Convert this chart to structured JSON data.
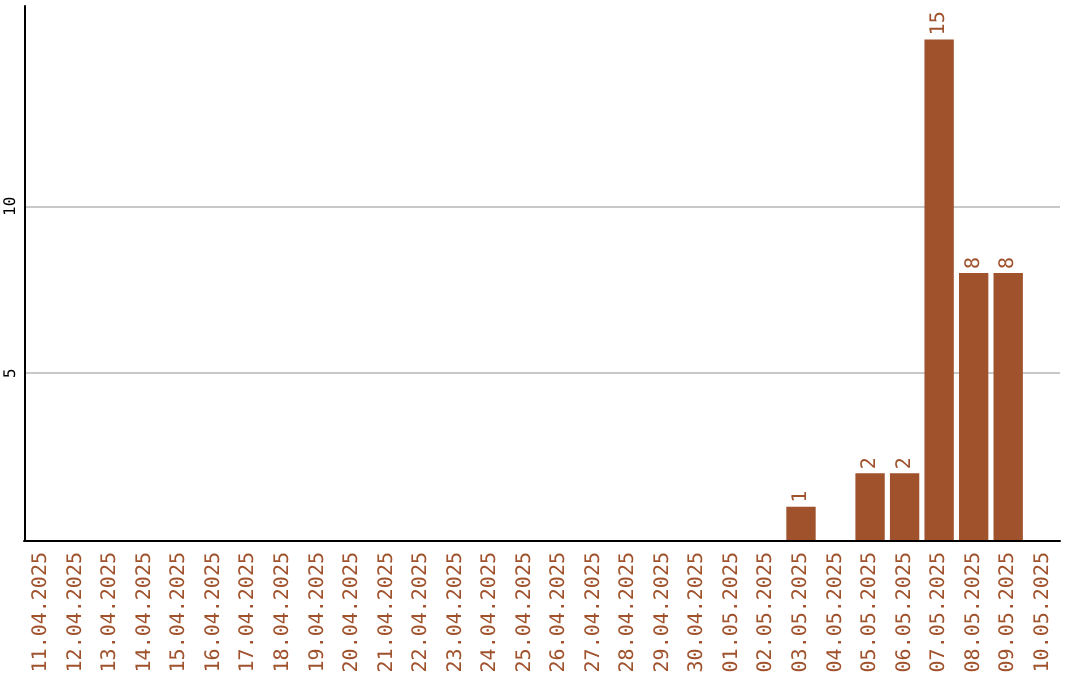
{
  "chart_data": {
    "type": "bar",
    "categories": [
      "11.04.2025",
      "12.04.2025",
      "13.04.2025",
      "14.04.2025",
      "15.04.2025",
      "16.04.2025",
      "17.04.2025",
      "18.04.2025",
      "19.04.2025",
      "20.04.2025",
      "21.04.2025",
      "22.04.2025",
      "23.04.2025",
      "24.04.2025",
      "25.04.2025",
      "26.04.2025",
      "27.04.2025",
      "28.04.2025",
      "29.04.2025",
      "30.04.2025",
      "01.05.2025",
      "02.05.2025",
      "03.05.2025",
      "04.05.2025",
      "05.05.2025",
      "06.05.2025",
      "07.05.2025",
      "08.05.2025",
      "09.05.2025",
      "10.05.2025"
    ],
    "values": [
      0,
      0,
      0,
      0,
      0,
      0,
      0,
      0,
      0,
      0,
      0,
      0,
      0,
      0,
      0,
      0,
      0,
      0,
      0,
      0,
      0,
      0,
      1,
      0,
      2,
      2,
      15,
      8,
      8,
      0
    ],
    "value_labels": [
      null,
      null,
      null,
      null,
      null,
      null,
      null,
      null,
      null,
      null,
      null,
      null,
      null,
      null,
      null,
      null,
      null,
      null,
      null,
      null,
      null,
      null,
      "1",
      null,
      "2",
      "2",
      "15",
      "8",
      "8",
      null
    ],
    "color": "#a0522d",
    "ylim": [
      0,
      16
    ],
    "yticks": [
      5,
      10
    ],
    "grid": "y"
  }
}
